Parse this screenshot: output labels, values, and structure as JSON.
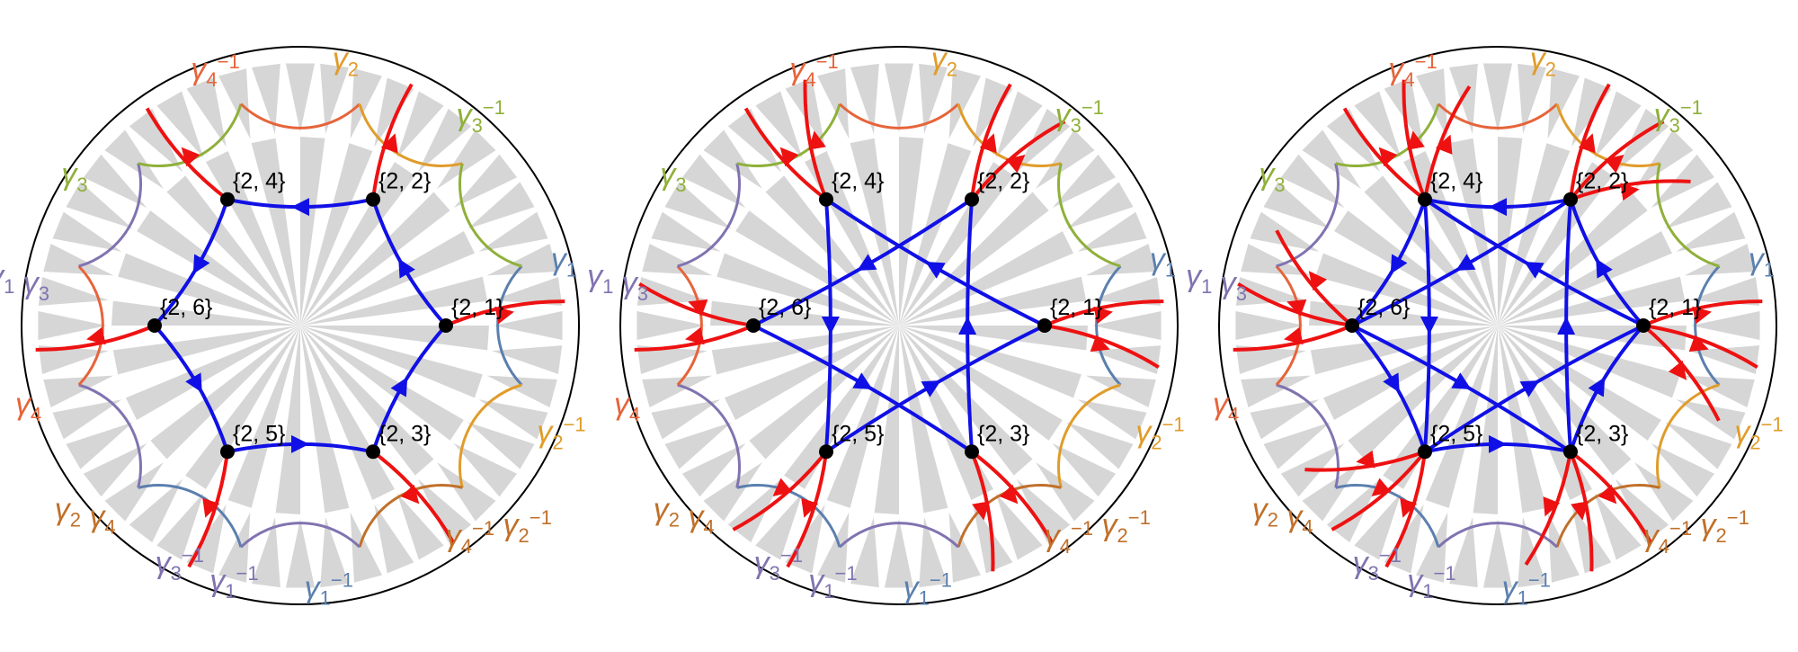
{
  "colors": {
    "tile": "#d6d6d6",
    "blue_edge": "#1010e6",
    "red_edge": "#ee1111",
    "gamma1": "#5b7fae",
    "gamma1_dup": "#8173b0",
    "gamma2": "#e09c2a",
    "gamma3": "#8fb03a",
    "gamma4": "#e6643a",
    "gamma24": "#c0702a"
  },
  "panels": [
    {
      "id": "panel-1",
      "nodes": [
        {
          "id": "n21",
          "label": "{2, 1}"
        },
        {
          "id": "n22",
          "label": "{2, 2}"
        },
        {
          "id": "n24",
          "label": "{2, 4}"
        },
        {
          "id": "n26",
          "label": "{2, 6}"
        },
        {
          "id": "n25",
          "label": "{2, 5}"
        },
        {
          "id": "n23",
          "label": "{2, 3}"
        }
      ],
      "blue_edges": [
        [
          "n21",
          "n22"
        ],
        [
          "n22",
          "n24"
        ],
        [
          "n24",
          "n26"
        ],
        [
          "n26",
          "n25"
        ],
        [
          "n25",
          "n23"
        ],
        [
          "n23",
          "n21"
        ]
      ],
      "red_stubs": 6
    },
    {
      "id": "panel-2",
      "nodes": [
        {
          "id": "n21",
          "label": "{2, 1}"
        },
        {
          "id": "n22",
          "label": "{2, 2}"
        },
        {
          "id": "n24",
          "label": "{2, 4}"
        },
        {
          "id": "n26",
          "label": "{2, 6}"
        },
        {
          "id": "n25",
          "label": "{2, 5}"
        },
        {
          "id": "n23",
          "label": "{2, 3}"
        }
      ],
      "blue_edges": [
        [
          "n21",
          "n24"
        ],
        [
          "n22",
          "n26"
        ],
        [
          "n24",
          "n25"
        ],
        [
          "n26",
          "n23"
        ],
        [
          "n25",
          "n21"
        ],
        [
          "n23",
          "n22"
        ]
      ],
      "red_stubs": 12
    },
    {
      "id": "panel-3",
      "nodes": [
        {
          "id": "n21",
          "label": "{2, 1}"
        },
        {
          "id": "n22",
          "label": "{2, 2}"
        },
        {
          "id": "n24",
          "label": "{2, 4}"
        },
        {
          "id": "n26",
          "label": "{2, 6}"
        },
        {
          "id": "n25",
          "label": "{2, 5}"
        },
        {
          "id": "n23",
          "label": "{2, 3}"
        }
      ],
      "blue_edges": [
        [
          "n21",
          "n22"
        ],
        [
          "n22",
          "n24"
        ],
        [
          "n24",
          "n26"
        ],
        [
          "n26",
          "n25"
        ],
        [
          "n25",
          "n23"
        ],
        [
          "n23",
          "n21"
        ],
        [
          "n21",
          "n24"
        ],
        [
          "n22",
          "n26"
        ],
        [
          "n24",
          "n25"
        ],
        [
          "n26",
          "n23"
        ],
        [
          "n25",
          "n21"
        ],
        [
          "n23",
          "n22"
        ]
      ],
      "red_stubs": 18
    }
  ],
  "gamma_labels": [
    {
      "base": "γ",
      "sub": "4",
      "sup": "−1",
      "color": "gamma4"
    },
    {
      "base": "γ",
      "sub": "2",
      "sup": "",
      "color": "gamma2"
    },
    {
      "base": "γ",
      "sub": "3",
      "sup": "−1",
      "color": "gamma3"
    },
    {
      "base": "γ",
      "sub": "1",
      "sup": "",
      "color": "gamma1"
    },
    {
      "base": "γ",
      "sub": "2",
      "sup": "−1",
      "color": "gamma2"
    },
    {
      "base": "γ",
      "sub": "4",
      "sup": "−1",
      "color": "gamma24",
      "extra": "γ",
      "extra_sub": "2",
      "extra_sup": "−1"
    },
    {
      "base": "γ",
      "sub": "1",
      "sup": "−1",
      "color": "gamma1"
    },
    {
      "base": "γ",
      "sub": "1",
      "sup": "−1",
      "color": "gamma1_dup"
    },
    {
      "base": "γ",
      "sub": "3",
      "sup": "−1",
      "color": "gamma1_dup"
    },
    {
      "base": "γ",
      "sub": "2",
      "sup": "",
      "color": "gamma24",
      "extra": "γ",
      "extra_sub": "4",
      "extra_sup": ""
    },
    {
      "base": "γ",
      "sub": "4",
      "sup": "",
      "color": "gamma4"
    },
    {
      "base": "γ",
      "sub": "1",
      "sup": "",
      "color": "gamma1_dup",
      "extra": "γ",
      "extra_sub": "3",
      "extra_sup": ""
    },
    {
      "base": "γ",
      "sub": "3",
      "sup": "",
      "color": "gamma3"
    }
  ]
}
